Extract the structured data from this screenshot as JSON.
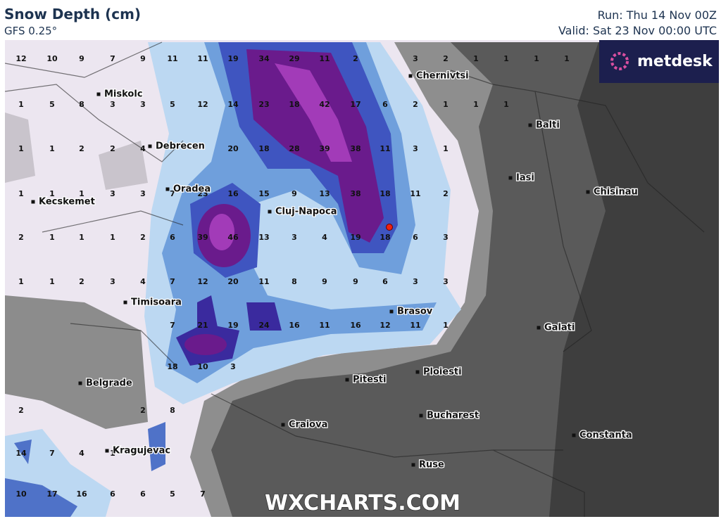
{
  "header": {
    "title": "Snow Depth (cm)",
    "subtitle": "GFS 0.25°",
    "run": "Run: Thu 14 Nov 00Z",
    "valid": "Valid: Sat 23 Nov 00:00 UTC"
  },
  "logo": "metdesk",
  "watermark": "WXCHARTS.COM",
  "cities": [
    "Chernivtsi",
    "Miskolc",
    "Balti",
    "Debrecen",
    "Iasi",
    "Chisinau",
    "Oradea",
    "Kecskemet",
    "Cluj-Napoca",
    "Timisoara",
    "Brasov",
    "Galati",
    "Ploiesti",
    "Pitesti",
    "Belgrade",
    "Bucharest",
    "Craiova",
    "Constanta",
    "Kragujevac",
    "Ruse"
  ],
  "snow_depth_labels": [
    12,
    10,
    9,
    7,
    9,
    11,
    11,
    19,
    34,
    29,
    11,
    2,
    3,
    2,
    1,
    1,
    1,
    1,
    1,
    5,
    8,
    3,
    3,
    5,
    12,
    14,
    23,
    18,
    42,
    17,
    6,
    2,
    1,
    1,
    1,
    1,
    1,
    2,
    2,
    4,
    20,
    18,
    28,
    39,
    38,
    11,
    3,
    1,
    1,
    1,
    1,
    3,
    3,
    7,
    23,
    16,
    15,
    9,
    13,
    38,
    18,
    11,
    2,
    2,
    1,
    1,
    1,
    2,
    6,
    39,
    46,
    13,
    3,
    4,
    19,
    18,
    6,
    3,
    1,
    1,
    2,
    3,
    4,
    7,
    12,
    20,
    11,
    8,
    9,
    9,
    6,
    3,
    3,
    7,
    21,
    19,
    24,
    16,
    11,
    16,
    12,
    11,
    1,
    18,
    10,
    3,
    2,
    2,
    8,
    14,
    7,
    4,
    1,
    10,
    17,
    16,
    6,
    6,
    5,
    7
  ]
}
